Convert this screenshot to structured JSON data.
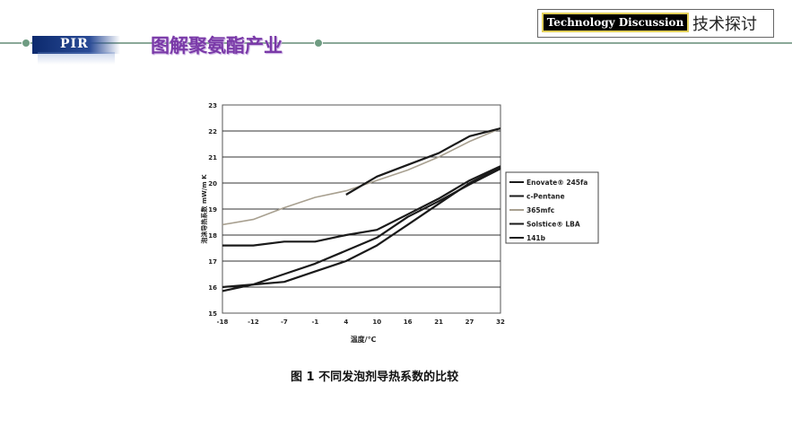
{
  "header": {
    "badge": "PIR",
    "title": "图解聚氨酯产业",
    "tech_en": "Technology Discussion",
    "tech_cn": "技术探讨"
  },
  "colors": {
    "header_line": "#8aa898",
    "title": "#7a3aa8",
    "badge_bg": "#0c2a6e",
    "series_dark": "#1a1a1a",
    "series_light": "#a8a090"
  },
  "chart_data": {
    "type": "line",
    "x": [
      -18,
      -12,
      -7,
      -1,
      4,
      10,
      16,
      21,
      27,
      32
    ],
    "x_tick_labels": [
      "-18",
      "-12",
      "-7",
      "-1",
      "4",
      "10",
      "16",
      "21",
      "27",
      "32"
    ],
    "y_tick_labels": [
      "15",
      "16",
      "17",
      "18",
      "19",
      "20",
      "21",
      "22",
      "23"
    ],
    "ylim": [
      15,
      23
    ],
    "xlabel": "温度/℃",
    "ylabel": "泡沫导热系数 mW/m K",
    "grid": "horizontal",
    "legend_position": "right",
    "series": [
      {
        "name": "Enovate® 245fa",
        "color": "#1a1a1a",
        "values": [
          16.0,
          16.1,
          16.2,
          16.6,
          17.0,
          17.6,
          18.4,
          19.2,
          20.0,
          20.6
        ]
      },
      {
        "name": "c-Pentane",
        "color": "#1a1a1a",
        "values": [
          17.6,
          17.6,
          17.75,
          17.75,
          18.0,
          18.2,
          18.8,
          19.4,
          20.1,
          20.65
        ]
      },
      {
        "name": "365mfc",
        "color": "#a8a090",
        "values": [
          18.4,
          18.6,
          19.05,
          19.45,
          19.7,
          20.1,
          20.5,
          21.0,
          21.6,
          22.1
        ]
      },
      {
        "name": "Solstice® LBA",
        "color": "#1a1a1a",
        "values": [
          15.85,
          16.1,
          16.5,
          16.9,
          17.4,
          17.9,
          18.7,
          19.3,
          19.95,
          20.55
        ]
      },
      {
        "name": "141b",
        "color": "#1a1a1a",
        "values": [
          null,
          null,
          null,
          null,
          19.55,
          20.25,
          20.7,
          21.15,
          21.8,
          22.1
        ]
      }
    ],
    "caption": "图 1    不同发泡剂导热系数的比较"
  }
}
